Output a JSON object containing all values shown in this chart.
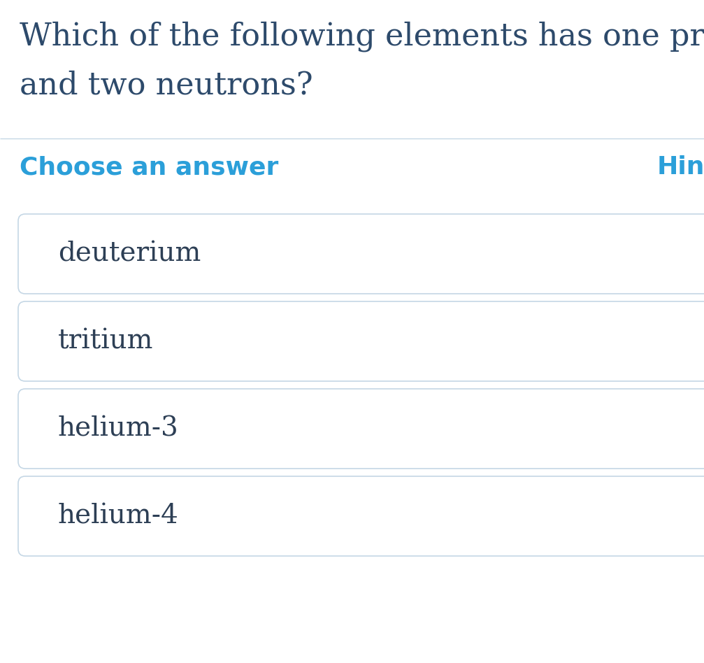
{
  "question_line1": "Which of the following elements has one proton",
  "question_line2": "and two neutrons?",
  "question_color": "#2d4a6b",
  "question_fontsize": 32,
  "section_label": "Choose an answer",
  "hint_label": "Hint",
  "section_label_color": "#2b9fd9",
  "section_label_fontsize": 26,
  "choices": [
    "deuterium",
    "tritium",
    "helium-3",
    "helium-4"
  ],
  "choice_fontsize": 28,
  "choice_text_color": "#2d3f55",
  "background_color": "#ffffff",
  "box_border_color": "#c5d7e5",
  "separator_color": "#c5d7e5",
  "box_bg_color": "#ffffff",
  "fig_width": 10.07,
  "fig_height": 9.48,
  "dpi": 100
}
